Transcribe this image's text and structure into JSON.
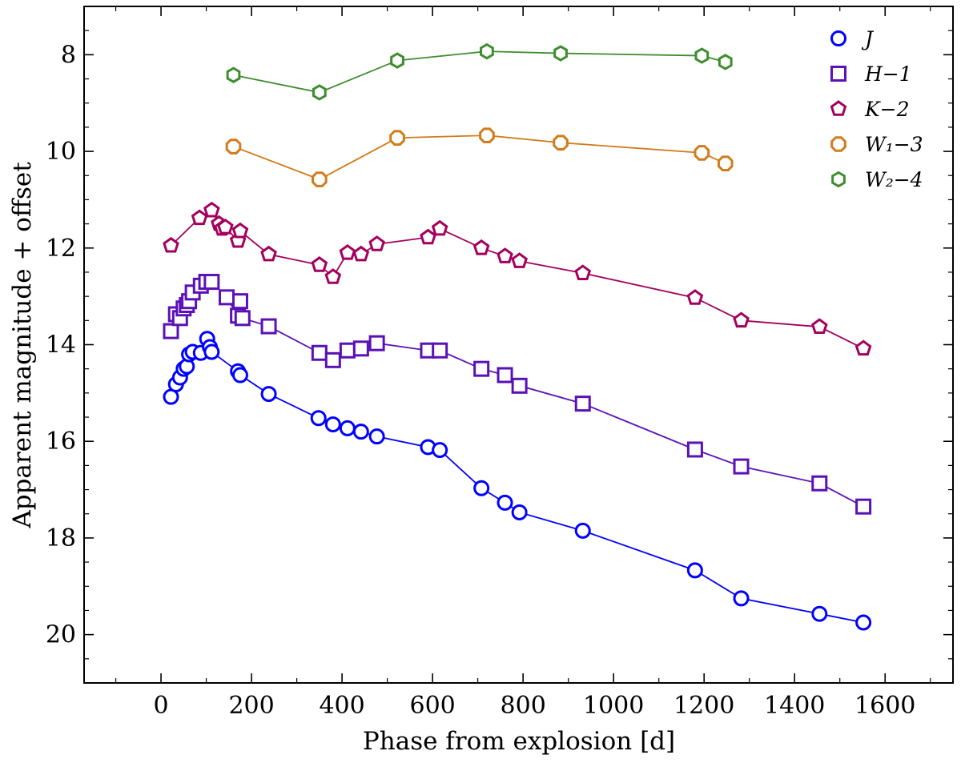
{
  "chart_data": {
    "type": "scatter",
    "title": "",
    "xlabel": "Phase from explosion [d]",
    "ylabel": "Apparent magnitude + offset",
    "xlim": [
      -170,
      1750
    ],
    "ylim": [
      21,
      7
    ],
    "y_inverted": true,
    "grid": false,
    "legend_position": "top-right",
    "xticks": [
      0,
      200,
      400,
      600,
      800,
      1000,
      1200,
      1400,
      1600
    ],
    "xtick_labels": [
      "0",
      "200",
      "400",
      "600",
      "800",
      "1000",
      "1200",
      "1400",
      "1600"
    ],
    "yticks": [
      8,
      10,
      12,
      14,
      16,
      18,
      20
    ],
    "ytick_labels": [
      "8",
      "10",
      "12",
      "14",
      "16",
      "18",
      "20"
    ],
    "series": [
      {
        "name": "J",
        "legend_label": "J",
        "marker": "circle",
        "color": "#0000ff",
        "points": [
          [
            22,
            15.08
          ],
          [
            33,
            14.82
          ],
          [
            42,
            14.68
          ],
          [
            50,
            14.5
          ],
          [
            57,
            14.45
          ],
          [
            62,
            14.2
          ],
          [
            70,
            14.15
          ],
          [
            88,
            14.17
          ],
          [
            102,
            13.88
          ],
          [
            108,
            14.05
          ],
          [
            112,
            14.15
          ],
          [
            170,
            14.55
          ],
          [
            175,
            14.63
          ],
          [
            238,
            15.02
          ],
          [
            348,
            15.52
          ],
          [
            380,
            15.65
          ],
          [
            412,
            15.73
          ],
          [
            442,
            15.8
          ],
          [
            477,
            15.9
          ],
          [
            590,
            16.12
          ],
          [
            616,
            16.18
          ],
          [
            708,
            16.97
          ],
          [
            760,
            17.27
          ],
          [
            792,
            17.47
          ],
          [
            932,
            17.85
          ],
          [
            1180,
            18.67
          ],
          [
            1282,
            19.25
          ],
          [
            1455,
            19.57
          ],
          [
            1552,
            19.75
          ]
        ]
      },
      {
        "name": "H",
        "legend_label": "H−1",
        "marker": "square",
        "color": "#5a11b5",
        "points": [
          [
            22,
            13.72
          ],
          [
            33,
            13.37
          ],
          [
            42,
            13.45
          ],
          [
            50,
            13.25
          ],
          [
            57,
            13.18
          ],
          [
            62,
            13.1
          ],
          [
            70,
            12.92
          ],
          [
            88,
            12.78
          ],
          [
            100,
            12.7
          ],
          [
            112,
            12.7
          ],
          [
            145,
            13.02
          ],
          [
            170,
            13.4
          ],
          [
            175,
            13.1
          ],
          [
            180,
            13.45
          ],
          [
            238,
            13.62
          ],
          [
            350,
            14.17
          ],
          [
            380,
            14.32
          ],
          [
            412,
            14.12
          ],
          [
            442,
            14.08
          ],
          [
            477,
            13.97
          ],
          [
            590,
            14.12
          ],
          [
            616,
            14.12
          ],
          [
            708,
            14.5
          ],
          [
            760,
            14.63
          ],
          [
            792,
            14.85
          ],
          [
            932,
            15.22
          ],
          [
            1180,
            16.17
          ],
          [
            1282,
            16.52
          ],
          [
            1455,
            16.87
          ],
          [
            1552,
            17.35
          ]
        ]
      },
      {
        "name": "K",
        "legend_label": "K−2",
        "marker": "pentagon",
        "color": "#a3005d",
        "points": [
          [
            22,
            11.95
          ],
          [
            85,
            11.38
          ],
          [
            112,
            11.22
          ],
          [
            128,
            11.5
          ],
          [
            135,
            11.6
          ],
          [
            142,
            11.57
          ],
          [
            170,
            11.85
          ],
          [
            175,
            11.65
          ],
          [
            238,
            12.13
          ],
          [
            350,
            12.35
          ],
          [
            380,
            12.6
          ],
          [
            412,
            12.1
          ],
          [
            442,
            12.13
          ],
          [
            477,
            11.92
          ],
          [
            590,
            11.78
          ],
          [
            616,
            11.6
          ],
          [
            708,
            12.0
          ],
          [
            760,
            12.17
          ],
          [
            792,
            12.27
          ],
          [
            932,
            12.52
          ],
          [
            1180,
            13.03
          ],
          [
            1282,
            13.5
          ],
          [
            1455,
            13.63
          ],
          [
            1552,
            14.08
          ]
        ]
      },
      {
        "name": "W1",
        "legend_label": "W₁−3",
        "marker": "octagon",
        "color": "#d27b1b",
        "points": [
          [
            160,
            9.9
          ],
          [
            350,
            10.58
          ],
          [
            522,
            9.72
          ],
          [
            720,
            9.67
          ],
          [
            883,
            9.82
          ],
          [
            1195,
            10.03
          ],
          [
            1247,
            10.25
          ]
        ]
      },
      {
        "name": "W2",
        "legend_label": "W₂−4",
        "marker": "hexagon",
        "color": "#3e8c2e",
        "points": [
          [
            160,
            8.42
          ],
          [
            350,
            8.78
          ],
          [
            522,
            8.12
          ],
          [
            720,
            7.93
          ],
          [
            883,
            7.97
          ],
          [
            1195,
            8.02
          ],
          [
            1247,
            8.15
          ]
        ]
      }
    ]
  }
}
